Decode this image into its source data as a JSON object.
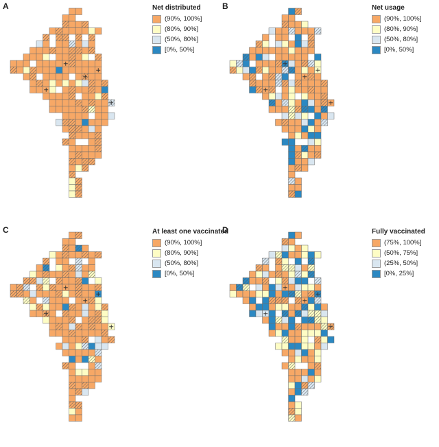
{
  "figure": {
    "panels": [
      {
        "id": "A",
        "title": "Net distributed",
        "scheme": "p_high",
        "legend": [
          {
            "label": "(90%, 100%]",
            "color": "#f7a866"
          },
          {
            "label": "(80%, 90%]",
            "color": "#fefdc5"
          },
          {
            "label": "(50%, 80%]",
            "color": "#d9e6f0"
          },
          {
            "label": "[0%, 50%]",
            "color": "#2b88c2"
          }
        ]
      },
      {
        "id": "B",
        "title": "Net usage",
        "scheme": "p_mid",
        "legend": [
          {
            "label": "(90%, 100%]",
            "color": "#f7a866"
          },
          {
            "label": "(80%, 90%]",
            "color": "#fefdc5"
          },
          {
            "label": "(50%, 80%]",
            "color": "#d9e6f0"
          },
          {
            "label": "[0%, 50%]",
            "color": "#2b88c2"
          }
        ]
      },
      {
        "id": "C",
        "title": "At least one vaccinated",
        "scheme": "p_high",
        "legend": [
          {
            "label": "(90%, 100%]",
            "color": "#f7a866"
          },
          {
            "label": "(80%, 90%]",
            "color": "#fefdc5"
          },
          {
            "label": "(50%, 80%]",
            "color": "#d9e6f0"
          },
          {
            "label": "[0%, 50%]",
            "color": "#2b88c2"
          }
        ]
      },
      {
        "id": "D",
        "title": "Fully vaccinated",
        "scheme": "p_low",
        "legend": [
          {
            "label": "(75%, 100%]",
            "color": "#f7a866"
          },
          {
            "label": "(50%, 75%]",
            "color": "#fefdc5"
          },
          {
            "label": "(25%, 50%]",
            "color": "#d9e6f0"
          },
          {
            "label": "[0%, 25%]",
            "color": "#2b88c2"
          }
        ]
      }
    ],
    "colors": {
      "cell_border": "#6d6d6d",
      "hatch": "#555555",
      "marker": "#333333"
    }
  }
}
